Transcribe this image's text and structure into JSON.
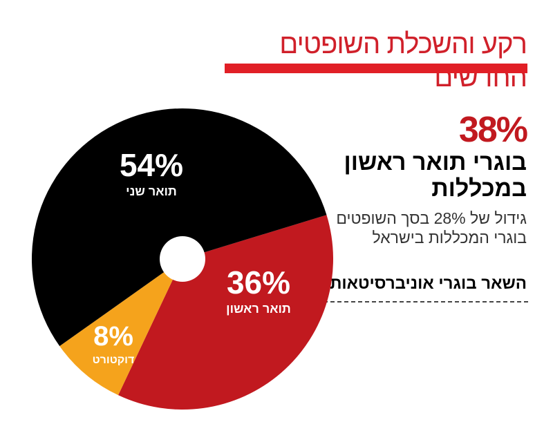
{
  "title": "רקע והשכלת השופטים החדשים",
  "stat": {
    "value": "38%",
    "headline_line1": "בוגרי תואר ראשון",
    "headline_line2": "במכללות",
    "desc_line1": "גידול של 28% בסך השופטים",
    "desc_line2": "בוגרי המכללות בישראל"
  },
  "others_label": "השאר בוגרי אוניברסיטאות:",
  "chart_data": {
    "type": "pie",
    "categories": [
      "תואר שני",
      "תואר ראשון",
      "דוקטורט"
    ],
    "values": [
      54,
      36,
      8
    ],
    "value_labels": [
      "54%",
      "36%",
      "8%"
    ],
    "colors": [
      "#000000",
      "#c1191f",
      "#f5a31c"
    ]
  }
}
